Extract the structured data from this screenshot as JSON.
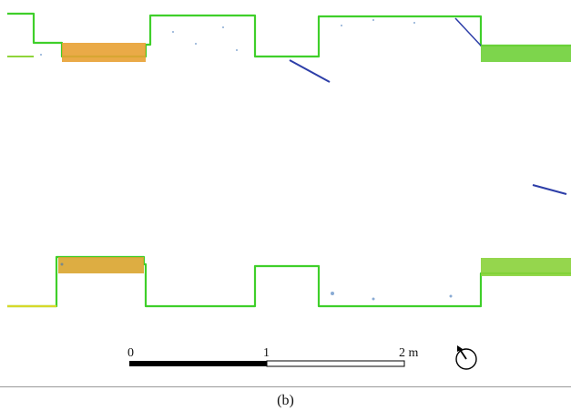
{
  "figure": {
    "caption": "(b)",
    "scale_bar": {
      "labels": [
        "0",
        "1",
        "2 m"
      ],
      "colors": {
        "filled": "#000000",
        "empty": "#ffffff",
        "outline": "#000000"
      }
    },
    "north_arrow": {
      "icon": "north-arrow-icon"
    },
    "point_cloud_colors": {
      "green": "#3fcf2a",
      "lime": "#8fd43a",
      "yellow": "#d7d82a",
      "orange": "#e89a2c",
      "blue": "#2d3ea8"
    }
  }
}
